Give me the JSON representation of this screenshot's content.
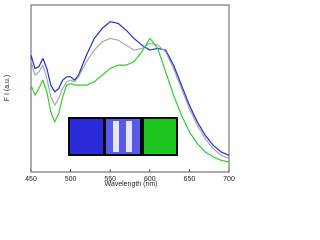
{
  "chart_data": {
    "type": "line",
    "x_label": "Wavelength (nm)",
    "y_label": "F I (a.u.)",
    "x": [
      450,
      455,
      460,
      465,
      470,
      475,
      480,
      485,
      490,
      495,
      500,
      505,
      510,
      520,
      530,
      540,
      550,
      560,
      570,
      580,
      590,
      600,
      610,
      620,
      630,
      640,
      650,
      660,
      670,
      680,
      690,
      700
    ],
    "series": [
      {
        "name": "blue",
        "color": "#1f2fcf",
        "values": [
          0.7,
          0.62,
          0.63,
          0.68,
          0.62,
          0.52,
          0.48,
          0.5,
          0.55,
          0.57,
          0.57,
          0.55,
          0.58,
          0.7,
          0.8,
          0.86,
          0.9,
          0.89,
          0.85,
          0.8,
          0.76,
          0.73,
          0.74,
          0.73,
          0.64,
          0.52,
          0.4,
          0.3,
          0.22,
          0.16,
          0.12,
          0.1
        ]
      },
      {
        "name": "gray",
        "color": "#a8a8a8",
        "values": [
          0.66,
          0.58,
          0.6,
          0.64,
          0.56,
          0.45,
          0.4,
          0.44,
          0.5,
          0.54,
          0.55,
          0.54,
          0.57,
          0.66,
          0.73,
          0.78,
          0.8,
          0.79,
          0.76,
          0.73,
          0.74,
          0.77,
          0.76,
          0.72,
          0.62,
          0.5,
          0.38,
          0.28,
          0.2,
          0.14,
          0.1,
          0.08
        ]
      },
      {
        "name": "green",
        "color": "#2fcf2f",
        "values": [
          0.52,
          0.46,
          0.5,
          0.55,
          0.48,
          0.36,
          0.3,
          0.35,
          0.45,
          0.52,
          0.53,
          0.52,
          0.52,
          0.52,
          0.54,
          0.58,
          0.62,
          0.64,
          0.64,
          0.66,
          0.72,
          0.8,
          0.74,
          0.6,
          0.46,
          0.34,
          0.24,
          0.17,
          0.12,
          0.09,
          0.07,
          0.06
        ]
      }
    ],
    "xlim": [
      450,
      700
    ],
    "xticks": [
      450,
      500,
      550,
      600,
      650,
      700
    ],
    "ylim": [
      0,
      1
    ]
  }
}
